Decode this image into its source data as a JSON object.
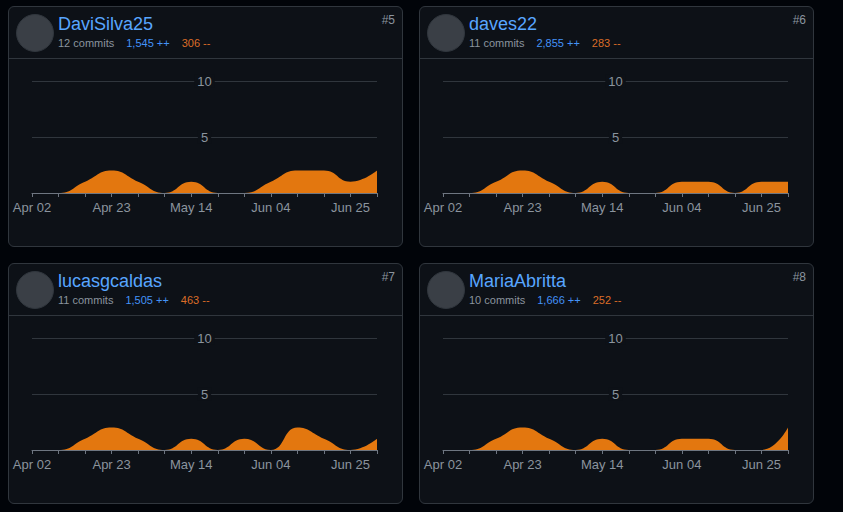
{
  "chart_data": [
    {
      "type": "area",
      "title": "DaviSilva25",
      "rank": "#5",
      "commits": "12 commits",
      "additions": "1,545 ++",
      "deletions": "306 --",
      "categories": [
        "Apr 02",
        null,
        null,
        "Apr 23",
        null,
        null,
        "May 14",
        null,
        null,
        "Jun 04",
        null,
        null,
        "Jun 25",
        null
      ],
      "values": [
        0,
        0,
        1,
        2,
        1,
        0,
        1,
        0,
        0,
        1,
        2,
        2,
        1,
        2
      ],
      "color": "#e3770f",
      "ylim": [
        0,
        10
      ],
      "yticks": [
        5,
        10
      ],
      "grid": true
    },
    {
      "type": "area",
      "title": "daves22",
      "rank": "#6",
      "commits": "11 commits",
      "additions": "2,855 ++",
      "deletions": "283 --",
      "categories": [
        "Apr 02",
        null,
        null,
        "Apr 23",
        null,
        null,
        "May 14",
        null,
        null,
        "Jun 04",
        null,
        null,
        "Jun 25",
        null
      ],
      "values": [
        0,
        0,
        1,
        2,
        1,
        0,
        1,
        0,
        0,
        1,
        1,
        0,
        1,
        1
      ],
      "color": "#e3770f",
      "ylim": [
        0,
        10
      ],
      "yticks": [
        5,
        10
      ],
      "grid": true
    },
    {
      "type": "area",
      "title": "lucasgcaldas",
      "rank": "#7",
      "commits": "11 commits",
      "additions": "1,505 ++",
      "deletions": "463 --",
      "categories": [
        "Apr 02",
        null,
        null,
        "Apr 23",
        null,
        null,
        "May 14",
        null,
        null,
        "Jun 04",
        null,
        null,
        "Jun 25",
        null
      ],
      "values": [
        0,
        0,
        1,
        2,
        1,
        0,
        1,
        0,
        1,
        0,
        2,
        1,
        0,
        1
      ],
      "color": "#e3770f",
      "ylim": [
        0,
        10
      ],
      "yticks": [
        5,
        10
      ],
      "grid": true
    },
    {
      "type": "area",
      "title": "MariaAbritta",
      "rank": "#8",
      "commits": "10 commits",
      "additions": "1,666 ++",
      "deletions": "252 --",
      "categories": [
        "Apr 02",
        null,
        null,
        "Apr 23",
        null,
        null,
        "May 14",
        null,
        null,
        "Jun 04",
        null,
        null,
        "Jun 25",
        null
      ],
      "values": [
        0,
        0,
        1,
        2,
        1,
        0,
        1,
        0,
        0,
        1,
        1,
        0,
        0,
        2
      ],
      "color": "#e3770f",
      "ylim": [
        0,
        10
      ],
      "yticks": [
        5,
        10
      ],
      "grid": true
    }
  ]
}
